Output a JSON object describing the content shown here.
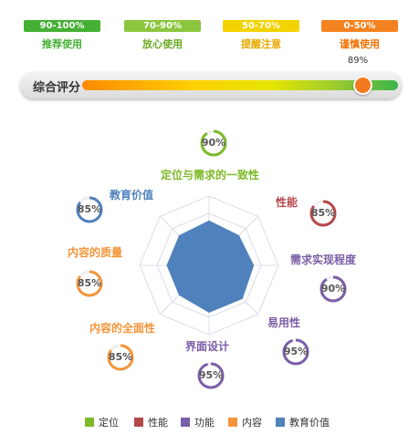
{
  "rating_bands": [
    {
      "range": "90-100%",
      "label": "推荐使用",
      "color": "#45b035",
      "text_color": "#45b035"
    },
    {
      "range": "70-90%",
      "label": "放心使用",
      "color": "#8cc63f",
      "text_color": "#6aaa22"
    },
    {
      "range": "50-70%",
      "label": "提醒注意",
      "color": "#f2d200",
      "text_color": "#e6a800"
    },
    {
      "range": "0-50%",
      "label": "谨慎使用",
      "color": "#f58220",
      "text_color": "#f07000"
    }
  ],
  "overall": {
    "label": "综合评分",
    "value_text": "89%",
    "value": 89
  },
  "dimensions": [
    {
      "name": "定位与需求的一致性",
      "score_text": "90%",
      "score": 90,
      "category": "定位"
    },
    {
      "name": "性能",
      "score_text": "85%",
      "score": 85,
      "category": "性能"
    },
    {
      "name": "需求实现程度",
      "score_text": "90%",
      "score": 90,
      "category": "功能"
    },
    {
      "name": "易用性",
      "score_text": "95%",
      "score": 95,
      "category": "功能"
    },
    {
      "name": "界面设计",
      "score_text": "95%",
      "score": 95,
      "category": "功能"
    },
    {
      "name": "内容的全面性",
      "score_text": "85%",
      "score": 85,
      "category": "内容"
    },
    {
      "name": "内容的质量",
      "score_text": "85%",
      "score": 85,
      "category": "内容"
    },
    {
      "name": "教育价值",
      "score_text": "85%",
      "score": 85,
      "category": "教育价值"
    }
  ],
  "legend": [
    {
      "label": "定位",
      "color": "#7db928"
    },
    {
      "label": "性能",
      "color": "#b5484b"
    },
    {
      "label": "功能",
      "color": "#7b5ea7"
    },
    {
      "label": "内容",
      "color": "#f5953b"
    },
    {
      "label": "教育价值",
      "color": "#4f81bd"
    }
  ],
  "radar_fill_color": "#4f81bd"
}
